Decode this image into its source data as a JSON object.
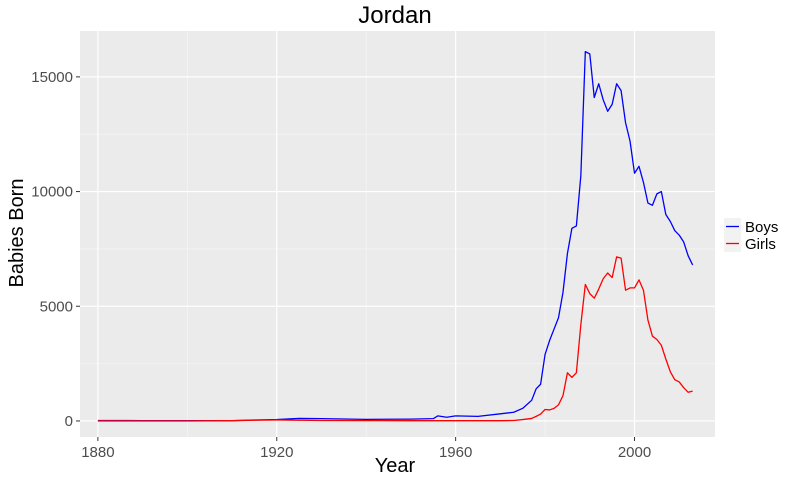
{
  "chart_data": {
    "type": "line",
    "title": "Jordan",
    "xlabel": "Year",
    "ylabel": "Babies Born",
    "xlim": [
      1876,
      2018
    ],
    "ylim": [
      -700,
      17000
    ],
    "x_ticks": [
      1880,
      1920,
      1960,
      2000
    ],
    "x_tick_labels": [
      "1880",
      "1920",
      "1960",
      "2000"
    ],
    "y_ticks": [
      0,
      5000,
      10000,
      15000
    ],
    "y_tick_labels": [
      "0",
      "5000",
      "10000",
      "15000"
    ],
    "grid": true,
    "legend_position": "right",
    "series": [
      {
        "name": "Boys",
        "color": "#0000ff",
        "points": [
          [
            1880,
            20
          ],
          [
            1890,
            15
          ],
          [
            1900,
            10
          ],
          [
            1910,
            15
          ],
          [
            1915,
            40
          ],
          [
            1920,
            60
          ],
          [
            1925,
            110
          ],
          [
            1930,
            100
          ],
          [
            1940,
            70
          ],
          [
            1950,
            80
          ],
          [
            1955,
            100
          ],
          [
            1956,
            220
          ],
          [
            1958,
            160
          ],
          [
            1960,
            220
          ],
          [
            1965,
            200
          ],
          [
            1970,
            310
          ],
          [
            1973,
            380
          ],
          [
            1975,
            550
          ],
          [
            1977,
            900
          ],
          [
            1978,
            1400
          ],
          [
            1979,
            1600
          ],
          [
            1980,
            2900
          ],
          [
            1981,
            3500
          ],
          [
            1982,
            4000
          ],
          [
            1983,
            4500
          ],
          [
            1984,
            5600
          ],
          [
            1985,
            7300
          ],
          [
            1986,
            8400
          ],
          [
            1987,
            8500
          ],
          [
            1988,
            10700
          ],
          [
            1989,
            16100
          ],
          [
            1990,
            16000
          ],
          [
            1991,
            14100
          ],
          [
            1992,
            14700
          ],
          [
            1993,
            14000
          ],
          [
            1994,
            13500
          ],
          [
            1995,
            13800
          ],
          [
            1996,
            14700
          ],
          [
            1997,
            14400
          ],
          [
            1998,
            13000
          ],
          [
            1999,
            12200
          ],
          [
            2000,
            10800
          ],
          [
            2001,
            11100
          ],
          [
            2002,
            10400
          ],
          [
            2003,
            9500
          ],
          [
            2004,
            9400
          ],
          [
            2005,
            9900
          ],
          [
            2006,
            10000
          ],
          [
            2007,
            9000
          ],
          [
            2008,
            8700
          ],
          [
            2009,
            8300
          ],
          [
            2010,
            8100
          ],
          [
            2011,
            7800
          ],
          [
            2012,
            7200
          ],
          [
            2013,
            6800
          ]
        ]
      },
      {
        "name": "Girls",
        "color": "#ff0000",
        "points": [
          [
            1880,
            0
          ],
          [
            1900,
            0
          ],
          [
            1910,
            10
          ],
          [
            1915,
            30
          ],
          [
            1920,
            40
          ],
          [
            1925,
            30
          ],
          [
            1930,
            20
          ],
          [
            1940,
            15
          ],
          [
            1950,
            10
          ],
          [
            1960,
            10
          ],
          [
            1970,
            10
          ],
          [
            1973,
            20
          ],
          [
            1975,
            60
          ],
          [
            1977,
            110
          ],
          [
            1978,
            200
          ],
          [
            1979,
            300
          ],
          [
            1980,
            500
          ],
          [
            1981,
            480
          ],
          [
            1982,
            550
          ],
          [
            1983,
            700
          ],
          [
            1984,
            1100
          ],
          [
            1985,
            2100
          ],
          [
            1986,
            1900
          ],
          [
            1987,
            2100
          ],
          [
            1988,
            4200
          ],
          [
            1989,
            5950
          ],
          [
            1990,
            5550
          ],
          [
            1991,
            5350
          ],
          [
            1992,
            5750
          ],
          [
            1993,
            6200
          ],
          [
            1994,
            6450
          ],
          [
            1995,
            6250
          ],
          [
            1996,
            7150
          ],
          [
            1997,
            7100
          ],
          [
            1998,
            5700
          ],
          [
            1999,
            5800
          ],
          [
            2000,
            5800
          ],
          [
            2001,
            6150
          ],
          [
            2002,
            5700
          ],
          [
            2003,
            4400
          ],
          [
            2004,
            3700
          ],
          [
            2005,
            3550
          ],
          [
            2006,
            3300
          ],
          [
            2007,
            2700
          ],
          [
            2008,
            2150
          ],
          [
            2009,
            1800
          ],
          [
            2010,
            1700
          ],
          [
            2011,
            1450
          ],
          [
            2012,
            1250
          ],
          [
            2013,
            1300
          ]
        ]
      }
    ]
  }
}
